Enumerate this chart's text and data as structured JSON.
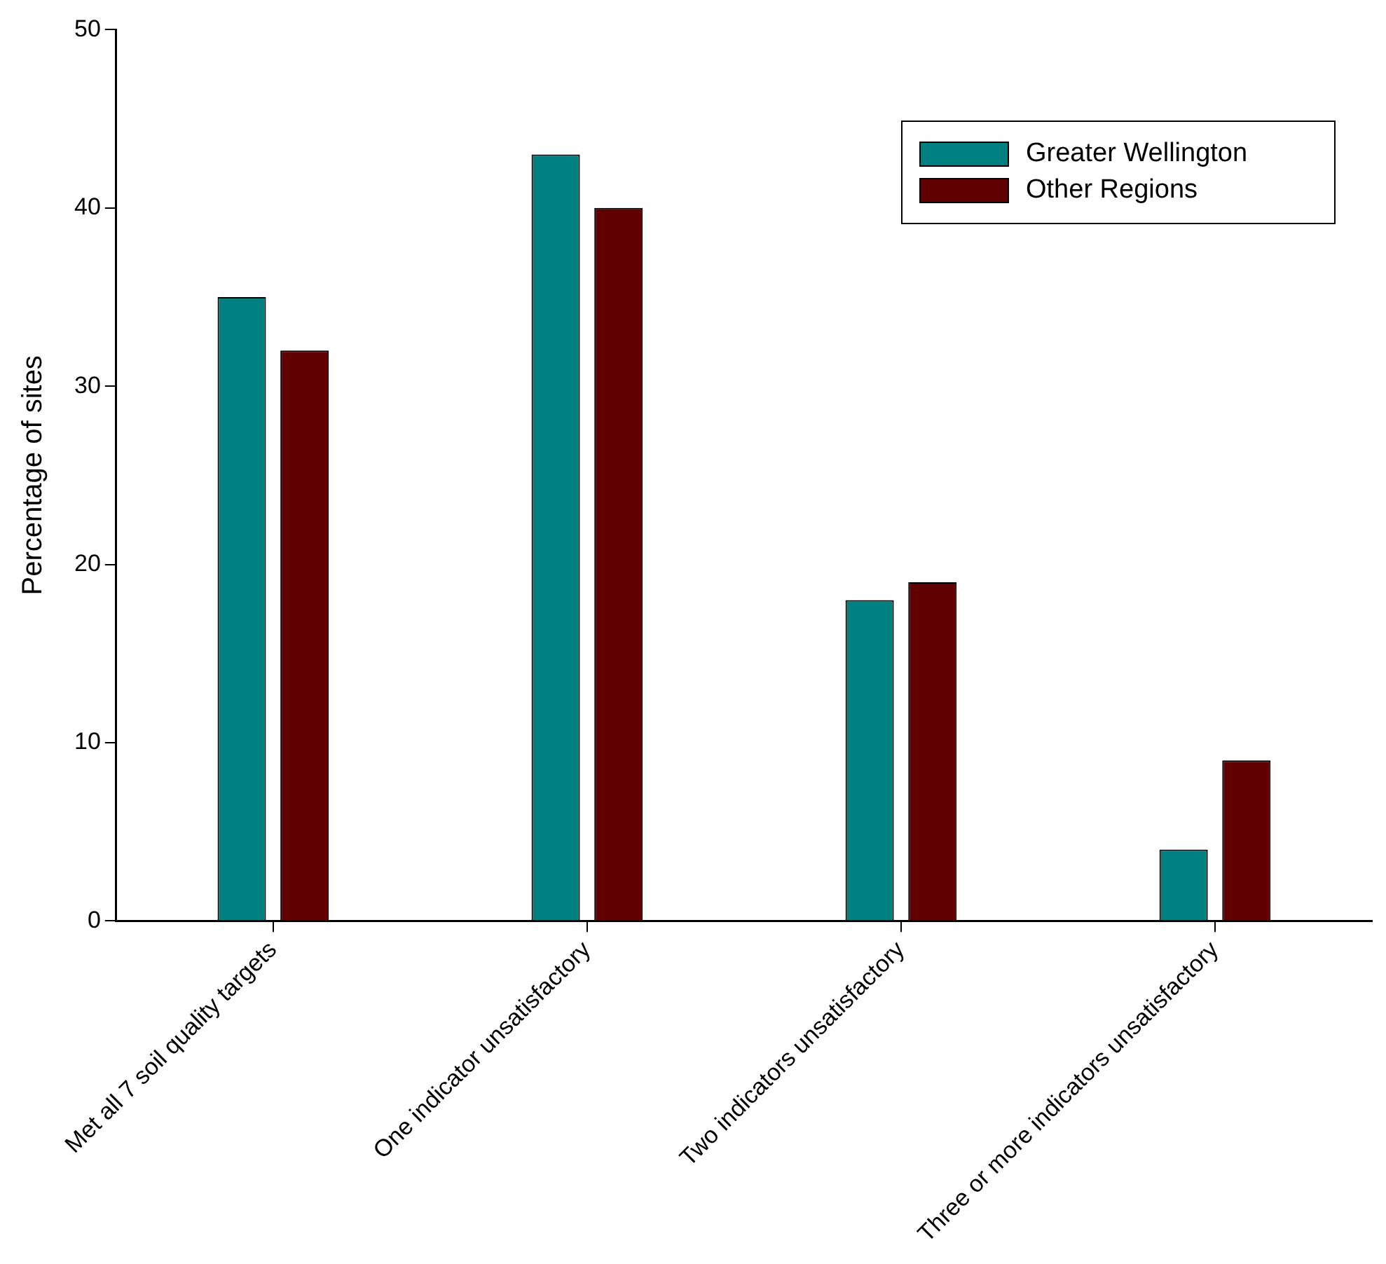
{
  "chart_data": {
    "type": "bar",
    "ylabel": "Percentage of sites",
    "categories": [
      "Met all 7 soil quality targets",
      "One indicator unsatisfactory",
      "Two indicators unsatisfactory",
      "Three or more indicators unsatisfactory"
    ],
    "series": [
      {
        "name": "Greater Wellington",
        "color": "#008080",
        "values": [
          35,
          43,
          18,
          4
        ]
      },
      {
        "name": "Other Regions",
        "color": "#600000",
        "values": [
          32,
          40,
          19,
          9
        ]
      }
    ],
    "ylim": [
      0,
      50
    ],
    "yticks": [
      0,
      10,
      20,
      30,
      40,
      50
    ],
    "grid": false,
    "legend": "top right"
  }
}
